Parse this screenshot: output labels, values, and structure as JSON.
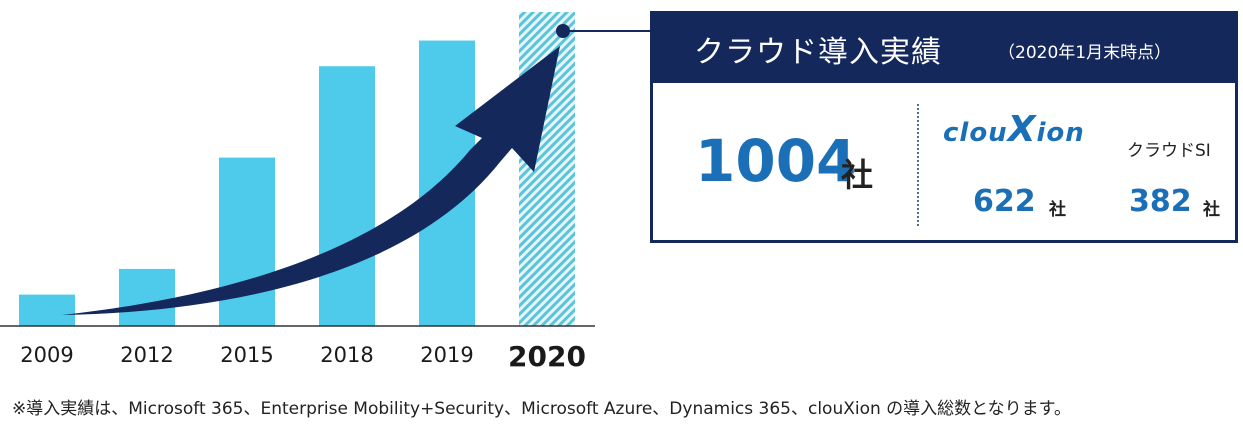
{
  "chart_data": {
    "type": "bar",
    "categories": [
      "2009",
      "2012",
      "2015",
      "2018",
      "2019",
      "2020"
    ],
    "values": [
      11,
      20,
      59,
      91,
      100,
      110
    ],
    "highlight_category": "2020",
    "colors": {
      "bar": "#4ecbeb",
      "highlight_hatch": "#5cc3da",
      "arrow": "#14285c",
      "axis": "#333333"
    }
  },
  "info": {
    "title": "クラウド導入実績",
    "date": "（2020年1月末時点）",
    "total_value": "1004",
    "total_unit": "社",
    "breakdown": [
      {
        "label": "clouXion",
        "label_prefix": "clou",
        "label_x": "X",
        "label_suffix": "ion",
        "value": "622",
        "unit": "社"
      },
      {
        "label": "クラウドSI",
        "value": "382",
        "unit": "社"
      }
    ],
    "colors": {
      "header": "#14285c",
      "number": "#1a6fb6"
    }
  },
  "footnote": "※導入実績は、Microsoft 365、Enterprise Mobility+Security、Microsoft Azure、Dynamics 365、clouXion の導入総数となります。"
}
